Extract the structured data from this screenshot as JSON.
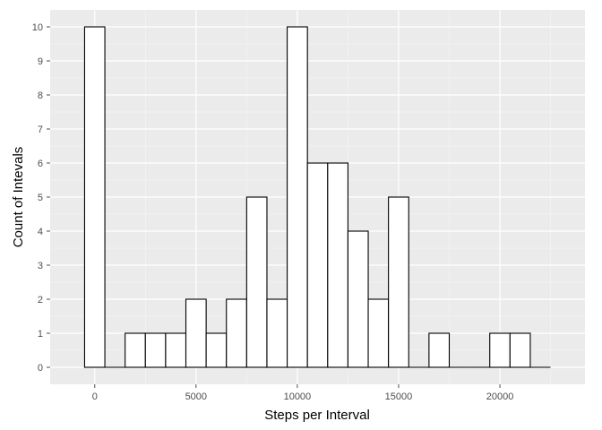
{
  "chart_data": {
    "type": "bar",
    "title": "",
    "xlabel": "Steps per Interval",
    "ylabel": "Count of Intevals",
    "binwidth": 1000,
    "bin_centers": [
      0,
      1000,
      2000,
      3000,
      4000,
      5000,
      6000,
      7000,
      8000,
      9000,
      10000,
      11000,
      12000,
      13000,
      14000,
      15000,
      16000,
      17000,
      18000,
      19000,
      20000,
      21000,
      22000
    ],
    "values": [
      10,
      0,
      1,
      1,
      1,
      2,
      1,
      2,
      5,
      2,
      10,
      6,
      6,
      4,
      2,
      5,
      0,
      1,
      0,
      0,
      1,
      1,
      0
    ],
    "xlim": [
      -2200,
      24200
    ],
    "ylim": [
      -0.5,
      10.5
    ],
    "x_ticks": [
      0,
      5000,
      10000,
      15000,
      20000
    ],
    "x_tick_labels": [
      "0",
      "5000",
      "10000",
      "15000",
      "20000"
    ],
    "y_ticks": [
      0,
      1,
      2,
      3,
      4,
      5,
      6,
      7,
      8,
      9,
      10
    ],
    "y_tick_labels": [
      "0",
      "1",
      "2",
      "3",
      "4",
      "5",
      "6",
      "7",
      "8",
      "9",
      "10"
    ],
    "grid": true,
    "colors": {
      "panel": "#ebebeb",
      "grid_major": "#ffffff",
      "grid_minor": "#f5f5f5",
      "bar_fill": "#ffffff",
      "bar_outline": "#000000"
    }
  }
}
